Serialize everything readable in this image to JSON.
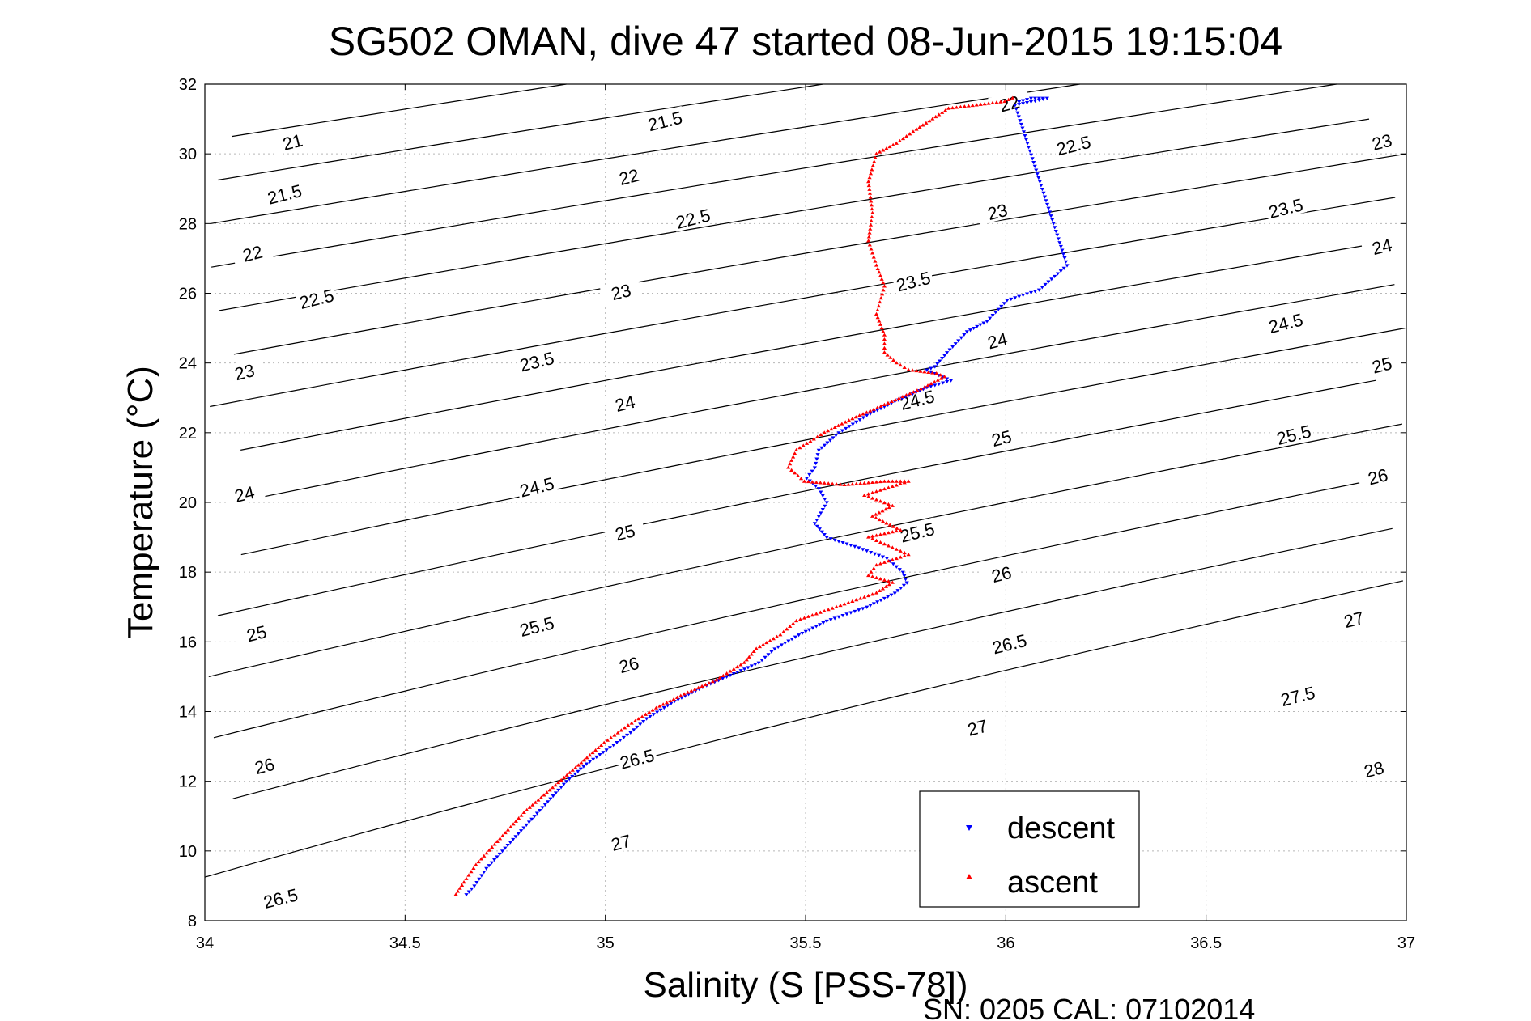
{
  "chart_data": {
    "type": "scatter",
    "title": "SG502 OMAN, dive 47 started 08-Jun-2015 19:15:04",
    "xlabel": "Salinity (S [PSS-78])",
    "ylabel": "Temperature (°C)",
    "xlim": [
      34,
      37
    ],
    "ylim": [
      8,
      32
    ],
    "xticks": [
      34,
      34.5,
      35,
      35.5,
      36,
      36.5,
      37
    ],
    "xtick_labels": [
      "34",
      "34.5",
      "35",
      "35.5",
      "36",
      "36.5",
      "37"
    ],
    "yticks": [
      8,
      10,
      12,
      14,
      16,
      18,
      20,
      22,
      24,
      26,
      28,
      30,
      32
    ],
    "ytick_labels": [
      "8",
      "10",
      "12",
      "14",
      "16",
      "18",
      "20",
      "22",
      "24",
      "26",
      "28",
      "30",
      "32"
    ],
    "grid": true,
    "legend_position": "bottom-right",
    "footer": "SN: 0205  CAL: 07102014",
    "density_contours": {
      "levels": [
        21,
        21.5,
        22,
        22.5,
        23,
        23.5,
        24,
        24.5,
        25,
        25.5,
        26,
        26.5,
        27,
        27.5,
        28
      ],
      "labels": [
        {
          "text": "21",
          "s": 34.22,
          "t": 30.3
        },
        {
          "text": "21.5",
          "s": 34.2,
          "t": 28.8
        },
        {
          "text": "22",
          "s": 34.12,
          "t": 27.1
        },
        {
          "text": "22.5",
          "s": 34.28,
          "t": 25.8
        },
        {
          "text": "23",
          "s": 34.1,
          "t": 23.7
        },
        {
          "text": "24",
          "s": 34.1,
          "t": 20.2
        },
        {
          "text": "25",
          "s": 34.13,
          "t": 16.2
        },
        {
          "text": "26",
          "s": 34.15,
          "t": 12.4
        },
        {
          "text": "26.5",
          "s": 34.19,
          "t": 8.6
        },
        {
          "text": "21.5",
          "s": 35.15,
          "t": 30.9
        },
        {
          "text": "22",
          "s": 35.06,
          "t": 29.3
        },
        {
          "text": "22.5",
          "s": 35.22,
          "t": 28.1
        },
        {
          "text": "23",
          "s": 35.04,
          "t": 26.0
        },
        {
          "text": "23.5",
          "s": 34.83,
          "t": 24.0
        },
        {
          "text": "24",
          "s": 35.05,
          "t": 22.8
        },
        {
          "text": "24.5",
          "s": 34.83,
          "t": 20.4
        },
        {
          "text": "25",
          "s": 35.05,
          "t": 19.1
        },
        {
          "text": "25.5",
          "s": 34.83,
          "t": 16.4
        },
        {
          "text": "26",
          "s": 35.06,
          "t": 15.3
        },
        {
          "text": "26.5",
          "s": 35.08,
          "t": 12.6
        },
        {
          "text": "27",
          "s": 35.04,
          "t": 10.2
        },
        {
          "text": "22",
          "s": 36.01,
          "t": 31.4
        },
        {
          "text": "22.5",
          "s": 36.17,
          "t": 30.2
        },
        {
          "text": "23",
          "s": 35.98,
          "t": 28.3
        },
        {
          "text": "23.5",
          "s": 35.77,
          "t": 26.3
        },
        {
          "text": "24",
          "s": 35.98,
          "t": 24.6
        },
        {
          "text": "24.5",
          "s": 35.78,
          "t": 22.9
        },
        {
          "text": "25",
          "s": 35.99,
          "t": 21.8
        },
        {
          "text": "25.5",
          "s": 35.78,
          "t": 19.1
        },
        {
          "text": "26",
          "s": 35.99,
          "t": 17.9
        },
        {
          "text": "26.5",
          "s": 36.01,
          "t": 15.9
        },
        {
          "text": "27",
          "s": 35.93,
          "t": 13.5
        },
        {
          "text": "23",
          "s": 36.94,
          "t": 30.3
        },
        {
          "text": "23.5",
          "s": 36.7,
          "t": 28.4
        },
        {
          "text": "24",
          "s": 36.94,
          "t": 27.3
        },
        {
          "text": "24.5",
          "s": 36.7,
          "t": 25.1
        },
        {
          "text": "25",
          "s": 36.94,
          "t": 23.9
        },
        {
          "text": "25.5",
          "s": 36.72,
          "t": 21.9
        },
        {
          "text": "26",
          "s": 36.93,
          "t": 20.7
        },
        {
          "text": "27",
          "s": 36.87,
          "t": 16.6
        },
        {
          "text": "27.5",
          "s": 36.73,
          "t": 14.4
        },
        {
          "text": "28",
          "s": 36.92,
          "t": 12.3
        }
      ]
    },
    "series": [
      {
        "name": "descent",
        "marker": "triangle-down",
        "color": "#0000ff",
        "points": [
          [
            36.03,
            31.5
          ],
          [
            36.06,
            31.6
          ],
          [
            36.1,
            31.6
          ],
          [
            36.02,
            31.4
          ],
          [
            36.15,
            26.8
          ],
          [
            36.08,
            26.1
          ],
          [
            36.0,
            25.8
          ],
          [
            35.95,
            25.2
          ],
          [
            35.9,
            24.9
          ],
          [
            35.85,
            24.3
          ],
          [
            35.82,
            23.9
          ],
          [
            35.8,
            23.8
          ],
          [
            35.86,
            23.5
          ],
          [
            35.8,
            23.3
          ],
          [
            35.72,
            22.9
          ],
          [
            35.65,
            22.5
          ],
          [
            35.58,
            22.0
          ],
          [
            35.53,
            21.5
          ],
          [
            35.52,
            21.0
          ],
          [
            35.5,
            20.7
          ],
          [
            35.53,
            20.4
          ],
          [
            35.55,
            20.0
          ],
          [
            35.53,
            19.6
          ],
          [
            35.52,
            19.4
          ],
          [
            35.55,
            19.0
          ],
          [
            35.63,
            18.7
          ],
          [
            35.7,
            18.4
          ],
          [
            35.74,
            18.0
          ],
          [
            35.75,
            17.7
          ],
          [
            35.72,
            17.4
          ],
          [
            35.65,
            17.0
          ],
          [
            35.55,
            16.6
          ],
          [
            35.48,
            16.2
          ],
          [
            35.42,
            15.8
          ],
          [
            35.38,
            15.4
          ],
          [
            35.3,
            15.0
          ],
          [
            35.24,
            14.7
          ],
          [
            35.17,
            14.3
          ],
          [
            35.1,
            13.8
          ],
          [
            35.06,
            13.4
          ],
          [
            35.0,
            12.9
          ],
          [
            34.95,
            12.5
          ],
          [
            34.9,
            12.0
          ],
          [
            34.86,
            11.5
          ],
          [
            34.82,
            11.0
          ],
          [
            34.78,
            10.5
          ],
          [
            34.74,
            10.0
          ],
          [
            34.7,
            9.5
          ],
          [
            34.67,
            9.0
          ],
          [
            34.65,
            8.75
          ]
        ]
      },
      {
        "name": "ascent",
        "marker": "triangle-up",
        "color": "#ff0000",
        "points": [
          [
            36.02,
            31.6
          ],
          [
            36.0,
            31.5
          ],
          [
            35.93,
            31.4
          ],
          [
            35.86,
            31.3
          ],
          [
            35.82,
            31.0
          ],
          [
            35.78,
            30.7
          ],
          [
            35.73,
            30.3
          ],
          [
            35.68,
            30.0
          ],
          [
            35.66,
            29.2
          ],
          [
            35.67,
            28.3
          ],
          [
            35.66,
            27.5
          ],
          [
            35.68,
            26.8
          ],
          [
            35.7,
            26.2
          ],
          [
            35.68,
            25.4
          ],
          [
            35.7,
            24.8
          ],
          [
            35.7,
            24.3
          ],
          [
            35.73,
            24.0
          ],
          [
            35.76,
            23.8
          ],
          [
            35.83,
            23.7
          ],
          [
            35.85,
            23.6
          ],
          [
            35.8,
            23.3
          ],
          [
            35.7,
            22.8
          ],
          [
            35.62,
            22.4
          ],
          [
            35.55,
            22.0
          ],
          [
            35.48,
            21.5
          ],
          [
            35.46,
            21.0
          ],
          [
            35.5,
            20.6
          ],
          [
            35.6,
            20.5
          ],
          [
            35.7,
            20.6
          ],
          [
            35.76,
            20.6
          ],
          [
            35.65,
            20.2
          ],
          [
            35.72,
            19.9
          ],
          [
            35.67,
            19.6
          ],
          [
            35.74,
            19.2
          ],
          [
            35.66,
            19.0
          ],
          [
            35.7,
            18.8
          ],
          [
            35.76,
            18.5
          ],
          [
            35.68,
            18.2
          ],
          [
            35.66,
            17.9
          ],
          [
            35.72,
            17.7
          ],
          [
            35.68,
            17.4
          ],
          [
            35.58,
            17.0
          ],
          [
            35.48,
            16.6
          ],
          [
            35.44,
            16.2
          ],
          [
            35.38,
            15.8
          ],
          [
            35.35,
            15.4
          ],
          [
            35.28,
            14.9
          ],
          [
            35.2,
            14.5
          ],
          [
            35.13,
            14.1
          ],
          [
            35.06,
            13.6
          ],
          [
            35.0,
            13.1
          ],
          [
            34.95,
            12.6
          ],
          [
            34.9,
            12.1
          ],
          [
            34.85,
            11.6
          ],
          [
            34.8,
            11.1
          ],
          [
            34.76,
            10.6
          ],
          [
            34.72,
            10.1
          ],
          [
            34.68,
            9.6
          ],
          [
            34.65,
            9.1
          ],
          [
            34.63,
            8.75
          ]
        ]
      }
    ]
  }
}
